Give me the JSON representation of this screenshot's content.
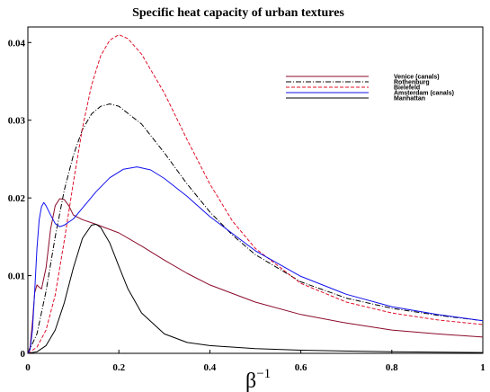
{
  "chart_data": {
    "type": "line",
    "title": "Specific heat capacity of urban textures",
    "xlabel": "β",
    "xlabel_superscript": "−1",
    "ylabel": "",
    "xlim": [
      0,
      1
    ],
    "ylim": [
      0,
      0.042
    ],
    "x_ticks": [
      "0",
      "0.2",
      "0.4",
      "0.6",
      "0.8",
      "1"
    ],
    "y_ticks": [
      "0",
      "0.01",
      "0.02",
      "0.03",
      "0.04"
    ],
    "grid": false,
    "legend_position": "top-right",
    "series": [
      {
        "name": "Venice (canals)",
        "color": "#8b0a2a",
        "dash": "solid",
        "points": [
          [
            0,
            0
          ],
          [
            0.005,
            0.0008
          ],
          [
            0.01,
            0.004
          ],
          [
            0.015,
            0.0078
          ],
          [
            0.02,
            0.0088
          ],
          [
            0.025,
            0.0085
          ],
          [
            0.03,
            0.0083
          ],
          [
            0.04,
            0.011
          ],
          [
            0.05,
            0.016
          ],
          [
            0.06,
            0.019
          ],
          [
            0.07,
            0.0199
          ],
          [
            0.08,
            0.0198
          ],
          [
            0.09,
            0.019
          ],
          [
            0.1,
            0.0178
          ],
          [
            0.12,
            0.0172
          ],
          [
            0.15,
            0.0166
          ],
          [
            0.2,
            0.0155
          ],
          [
            0.25,
            0.0138
          ],
          [
            0.3,
            0.012
          ],
          [
            0.35,
            0.0103
          ],
          [
            0.4,
            0.0088
          ],
          [
            0.5,
            0.0066
          ],
          [
            0.6,
            0.005
          ],
          [
            0.7,
            0.0039
          ],
          [
            0.8,
            0.003
          ],
          [
            0.9,
            0.0025
          ],
          [
            1.0,
            0.0021
          ]
        ]
      },
      {
        "name": "Rothenburg",
        "color": "#000000",
        "dash": "dashdot",
        "points": [
          [
            0,
            0
          ],
          [
            0.02,
            0.0025
          ],
          [
            0.04,
            0.008
          ],
          [
            0.06,
            0.015
          ],
          [
            0.08,
            0.021
          ],
          [
            0.1,
            0.0255
          ],
          [
            0.12,
            0.0288
          ],
          [
            0.14,
            0.0308
          ],
          [
            0.16,
            0.0318
          ],
          [
            0.18,
            0.0321
          ],
          [
            0.2,
            0.0318
          ],
          [
            0.25,
            0.0295
          ],
          [
            0.3,
            0.0258
          ],
          [
            0.35,
            0.0218
          ],
          [
            0.4,
            0.0182
          ],
          [
            0.45,
            0.0152
          ],
          [
            0.5,
            0.0127
          ],
          [
            0.6,
            0.0092
          ],
          [
            0.7,
            0.0071
          ],
          [
            0.8,
            0.0058
          ],
          [
            0.9,
            0.0049
          ],
          [
            1.0,
            0.0042
          ]
        ]
      },
      {
        "name": "Bielefeld",
        "color": "#e0102a",
        "dash": "dashed",
        "points": [
          [
            0,
            0
          ],
          [
            0.02,
            0.0008
          ],
          [
            0.04,
            0.003
          ],
          [
            0.06,
            0.0075
          ],
          [
            0.08,
            0.0145
          ],
          [
            0.1,
            0.022
          ],
          [
            0.12,
            0.029
          ],
          [
            0.14,
            0.0345
          ],
          [
            0.16,
            0.0383
          ],
          [
            0.18,
            0.0403
          ],
          [
            0.2,
            0.041
          ],
          [
            0.22,
            0.0405
          ],
          [
            0.25,
            0.0385
          ],
          [
            0.3,
            0.0335
          ],
          [
            0.35,
            0.0275
          ],
          [
            0.4,
            0.0218
          ],
          [
            0.45,
            0.017
          ],
          [
            0.5,
            0.0135
          ],
          [
            0.6,
            0.009
          ],
          [
            0.7,
            0.0066
          ],
          [
            0.8,
            0.0052
          ],
          [
            0.9,
            0.0043
          ],
          [
            1.0,
            0.0037
          ]
        ]
      },
      {
        "name": "Amsterdam (canals)",
        "color": "#1010ee",
        "dash": "solid",
        "points": [
          [
            0,
            0
          ],
          [
            0.005,
            0.0005
          ],
          [
            0.01,
            0.003
          ],
          [
            0.015,
            0.008
          ],
          [
            0.02,
            0.0135
          ],
          [
            0.025,
            0.0172
          ],
          [
            0.03,
            0.0189
          ],
          [
            0.035,
            0.0194
          ],
          [
            0.04,
            0.019
          ],
          [
            0.05,
            0.0178
          ],
          [
            0.06,
            0.0167
          ],
          [
            0.07,
            0.0163
          ],
          [
            0.08,
            0.0165
          ],
          [
            0.1,
            0.0173
          ],
          [
            0.12,
            0.0187
          ],
          [
            0.15,
            0.0208
          ],
          [
            0.18,
            0.0226
          ],
          [
            0.21,
            0.0237
          ],
          [
            0.24,
            0.024
          ],
          [
            0.27,
            0.0236
          ],
          [
            0.3,
            0.0225
          ],
          [
            0.35,
            0.0202
          ],
          [
            0.4,
            0.0176
          ],
          [
            0.5,
            0.0132
          ],
          [
            0.6,
            0.0099
          ],
          [
            0.7,
            0.0076
          ],
          [
            0.8,
            0.006
          ],
          [
            0.9,
            0.005
          ],
          [
            1.0,
            0.0042
          ]
        ]
      },
      {
        "name": "Manhattan",
        "color": "#000000",
        "dash": "solid",
        "points": [
          [
            0,
            0
          ],
          [
            0.02,
            0.0002
          ],
          [
            0.04,
            0.001
          ],
          [
            0.06,
            0.003
          ],
          [
            0.08,
            0.0065
          ],
          [
            0.1,
            0.011
          ],
          [
            0.12,
            0.0148
          ],
          [
            0.14,
            0.0165
          ],
          [
            0.15,
            0.0166
          ],
          [
            0.16,
            0.0162
          ],
          [
            0.18,
            0.0142
          ],
          [
            0.2,
            0.0112
          ],
          [
            0.22,
            0.0083
          ],
          [
            0.25,
            0.0052
          ],
          [
            0.3,
            0.0025
          ],
          [
            0.35,
            0.0014
          ],
          [
            0.4,
            0.001
          ],
          [
            0.5,
            0.0006
          ],
          [
            0.6,
            0.0004
          ],
          [
            0.8,
            0.0002
          ],
          [
            1.0,
            0.0001
          ]
        ]
      }
    ]
  }
}
